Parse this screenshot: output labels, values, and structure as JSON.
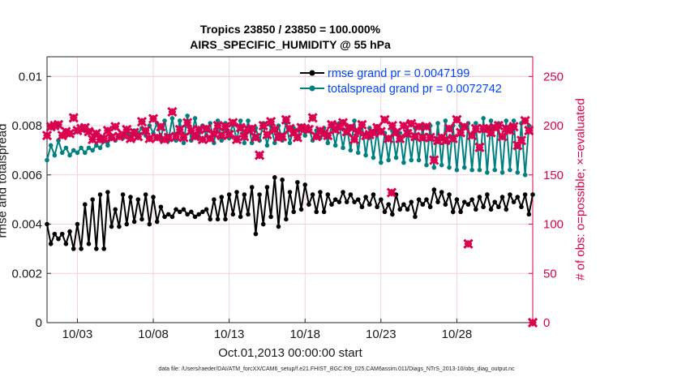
{
  "chart_data": {
    "type": "line",
    "title": "Tropics 23850 / 23850 = 100.000%",
    "subtitle": "AIRS_SPECIFIC_HUMIDITY @ 55 hPa",
    "xlabel": "Oct.01,2013 00:00:00 start",
    "ylabel_left": "rmse and totalspread",
    "ylabel_right": "# of obs: o=possible; ×=evaluated",
    "footer": "data file: /Users/raeder/DAI/ATM_forcXX/CAM6_setup/f.e21.FHIST_BGC.f09_025.CAM6assim.011/Diags_NTrS_2013-10/obs_diag_output.nc",
    "x_tick_labels": [
      "10/03",
      "10/08",
      "10/13",
      "10/18",
      "10/23",
      "10/28"
    ],
    "x_tick_days": [
      3,
      8,
      13,
      18,
      23,
      28
    ],
    "xlim_days": [
      1,
      33
    ],
    "y_left_ticks": [
      "0",
      "0.002",
      "0.004",
      "0.006",
      "0.008",
      "0.01"
    ],
    "y_left_tick_values": [
      0,
      0.002,
      0.004,
      0.006,
      0.008,
      0.01
    ],
    "ylim_left": [
      0,
      0.0108
    ],
    "y_right_ticks": [
      "0",
      "50",
      "100",
      "150",
      "200",
      "250"
    ],
    "y_right_tick_values": [
      0,
      50,
      100,
      150,
      200,
      250
    ],
    "ylim_right": [
      0,
      270
    ],
    "grid": true,
    "legend_position": "top-right",
    "colors": {
      "rmse": "#000000",
      "totalspread": "#008080",
      "obs": "#d9004f",
      "legend_text": "#0044ff",
      "grid": "#f0c8d8"
    },
    "series": [
      {
        "name": "rmse",
        "legend": "rmse grand pr = 0.0047199",
        "axis": "left",
        "x_start_day": 1.0,
        "x_step_day": 0.25,
        "values": [
          0.004,
          0.0032,
          0.0036,
          0.0034,
          0.0036,
          0.0032,
          0.0037,
          0.003,
          0.004,
          0.003,
          0.0048,
          0.0032,
          0.005,
          0.003,
          0.0052,
          0.003,
          0.0053,
          0.0039,
          0.0046,
          0.0039,
          0.0052,
          0.004,
          0.0051,
          0.0041,
          0.005,
          0.0042,
          0.0052,
          0.004,
          0.0051,
          0.0041,
          0.0047,
          0.0043,
          0.0044,
          0.0043,
          0.0046,
          0.0045,
          0.0046,
          0.0044,
          0.0045,
          0.0043,
          0.0044,
          0.0045,
          0.0046,
          0.0042,
          0.005,
          0.0042,
          0.0051,
          0.0042,
          0.0052,
          0.0044,
          0.0053,
          0.0043,
          0.0052,
          0.0044,
          0.0055,
          0.0036,
          0.0052,
          0.004,
          0.0055,
          0.0043,
          0.0059,
          0.0039,
          0.0058,
          0.0042,
          0.0053,
          0.0045,
          0.0057,
          0.0046,
          0.0056,
          0.0048,
          0.0052,
          0.0045,
          0.0053,
          0.0045,
          0.0052,
          0.0048,
          0.005,
          0.0049,
          0.0053,
          0.0049,
          0.0052,
          0.0049,
          0.005,
          0.0047,
          0.0051,
          0.0048,
          0.0052,
          0.0047,
          0.005,
          0.0045,
          0.0048,
          0.0044,
          0.0052,
          0.0046,
          0.0048,
          0.0046,
          0.0049,
          0.0043,
          0.005,
          0.0048,
          0.005,
          0.0047,
          0.0054,
          0.0049,
          0.0053,
          0.0048,
          0.0052,
          0.0045,
          0.005,
          0.0045,
          0.0049,
          0.0048,
          0.005,
          0.0046,
          0.0051,
          0.0047,
          0.0052,
          0.0046,
          0.0049,
          0.0047,
          0.0051,
          0.0046,
          0.0052,
          0.0049,
          0.0051,
          0.0047,
          0.0052,
          0.0044,
          0.0052
        ]
      },
      {
        "name": "totalspread",
        "legend": "totalspread grand pr = 0.0072742",
        "axis": "left",
        "x_start_day": 1.0,
        "x_step_day": 0.25,
        "values": [
          0.0066,
          0.0072,
          0.0068,
          0.0074,
          0.0069,
          0.0071,
          0.0068,
          0.007,
          0.0069,
          0.0071,
          0.0069,
          0.0071,
          0.007,
          0.0072,
          0.0071,
          0.0074,
          0.0072,
          0.0076,
          0.0074,
          0.0076,
          0.0075,
          0.0077,
          0.0076,
          0.0078,
          0.0077,
          0.0079,
          0.0076,
          0.008,
          0.0077,
          0.0081,
          0.0075,
          0.0082,
          0.0074,
          0.0083,
          0.0074,
          0.0082,
          0.0073,
          0.0084,
          0.0074,
          0.0083,
          0.0075,
          0.008,
          0.0076,
          0.0081,
          0.0073,
          0.0082,
          0.0074,
          0.0081,
          0.0075,
          0.0081,
          0.0074,
          0.0082,
          0.0073,
          0.0082,
          0.0073,
          0.0079,
          0.0074,
          0.0081,
          0.0072,
          0.008,
          0.0073,
          0.008,
          0.0074,
          0.0081,
          0.0073,
          0.0079,
          0.0075,
          0.008,
          0.0076,
          0.0079,
          0.0074,
          0.0078,
          0.0075,
          0.0079,
          0.0073,
          0.008,
          0.0072,
          0.0081,
          0.0071,
          0.008,
          0.007,
          0.0082,
          0.0069,
          0.0081,
          0.0068,
          0.0079,
          0.0067,
          0.0078,
          0.0065,
          0.0077,
          0.0066,
          0.0078,
          0.0067,
          0.0077,
          0.0065,
          0.0078,
          0.0066,
          0.0079,
          0.0066,
          0.008,
          0.0064,
          0.008,
          0.0063,
          0.0081,
          0.0064,
          0.0082,
          0.0063,
          0.008,
          0.0062,
          0.008,
          0.0063,
          0.0081,
          0.0062,
          0.0081,
          0.0062,
          0.0083,
          0.0061,
          0.0082,
          0.0062,
          0.0081,
          0.0061,
          0.0082,
          0.0062,
          0.0082,
          0.0061,
          0.0081,
          0.006,
          0.008
        ]
      },
      {
        "name": "# of obs evaluated",
        "axis": "right",
        "marker": "x",
        "x_start_day": 1.0,
        "x_step_day": 0.25,
        "values": [
          190,
          199,
          200,
          201,
          190,
          194,
          192,
          208,
          195,
          197,
          198,
          194,
          186,
          192,
          186,
          187,
          195,
          188,
          199,
          189,
          191,
          196,
          187,
          193,
          189,
          204,
          195,
          187,
          207,
          188,
          199,
          186,
          188,
          214,
          189,
          196,
          188,
          203,
          195,
          189,
          196,
          186,
          197,
          187,
          192,
          200,
          190,
          199,
          191,
          203,
          186,
          198,
          189,
          196,
          197,
          188,
          170,
          200,
          191,
          204,
          196,
          188,
          189,
          206,
          197,
          193,
          188,
          198,
          197,
          196,
          208,
          189,
          195,
          192,
          190,
          201,
          196,
          199,
          203,
          194,
          198,
          186,
          194,
          201,
          190,
          191,
          193,
          198,
          194,
          206,
          187,
          200,
          193,
          187,
          200,
          192,
          202,
          189,
          199,
          188,
          199,
          188,
          165,
          185,
          188,
          185,
          197,
          187,
          206,
          193,
          199,
          80,
          190,
          197,
          178,
          197,
          197,
          193,
          198,
          200,
          189,
          197,
          195,
          199,
          180,
          185,
          205,
          195
        ]
      }
    ],
    "extra_points": [
      {
        "series": "# of obs evaluated",
        "day": 23.7,
        "value": 132
      },
      {
        "series": "# of obs evaluated",
        "day": 33.0,
        "value": 0
      }
    ],
    "legend_entries": [
      "rmse grand pr = 0.0047199",
      "totalspread grand pr = 0.0072742"
    ]
  }
}
